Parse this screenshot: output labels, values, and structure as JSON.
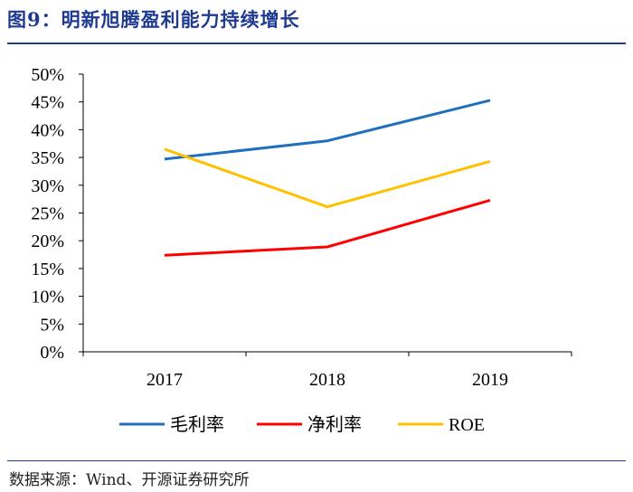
{
  "figure": {
    "title": "图9：明新旭腾盈利能力持续增长",
    "source": "数据来源：Wind、开源证券研究所"
  },
  "chart_data": {
    "type": "line",
    "title": "",
    "xlabel": "",
    "ylabel": "",
    "x": [
      "2017",
      "2018",
      "2019"
    ],
    "ylim": [
      0,
      0.5
    ],
    "yticks": [
      0,
      0.05,
      0.1,
      0.15,
      0.2,
      0.25,
      0.3,
      0.35,
      0.4,
      0.45,
      0.5
    ],
    "ytick_labels": [
      "0%",
      "5%",
      "10%",
      "15%",
      "20%",
      "25%",
      "30%",
      "35%",
      "40%",
      "45%",
      "50%"
    ],
    "grid": false,
    "legend_position": "bottom",
    "series": [
      {
        "name": "毛利率",
        "color": "#1f6fbf",
        "values": [
          0.347,
          0.38,
          0.453
        ]
      },
      {
        "name": "净利率",
        "color": "#ff0000",
        "values": [
          0.174,
          0.189,
          0.273
        ]
      },
      {
        "name": "ROE",
        "color": "#ffc000",
        "values": [
          0.365,
          0.261,
          0.343
        ]
      }
    ]
  }
}
